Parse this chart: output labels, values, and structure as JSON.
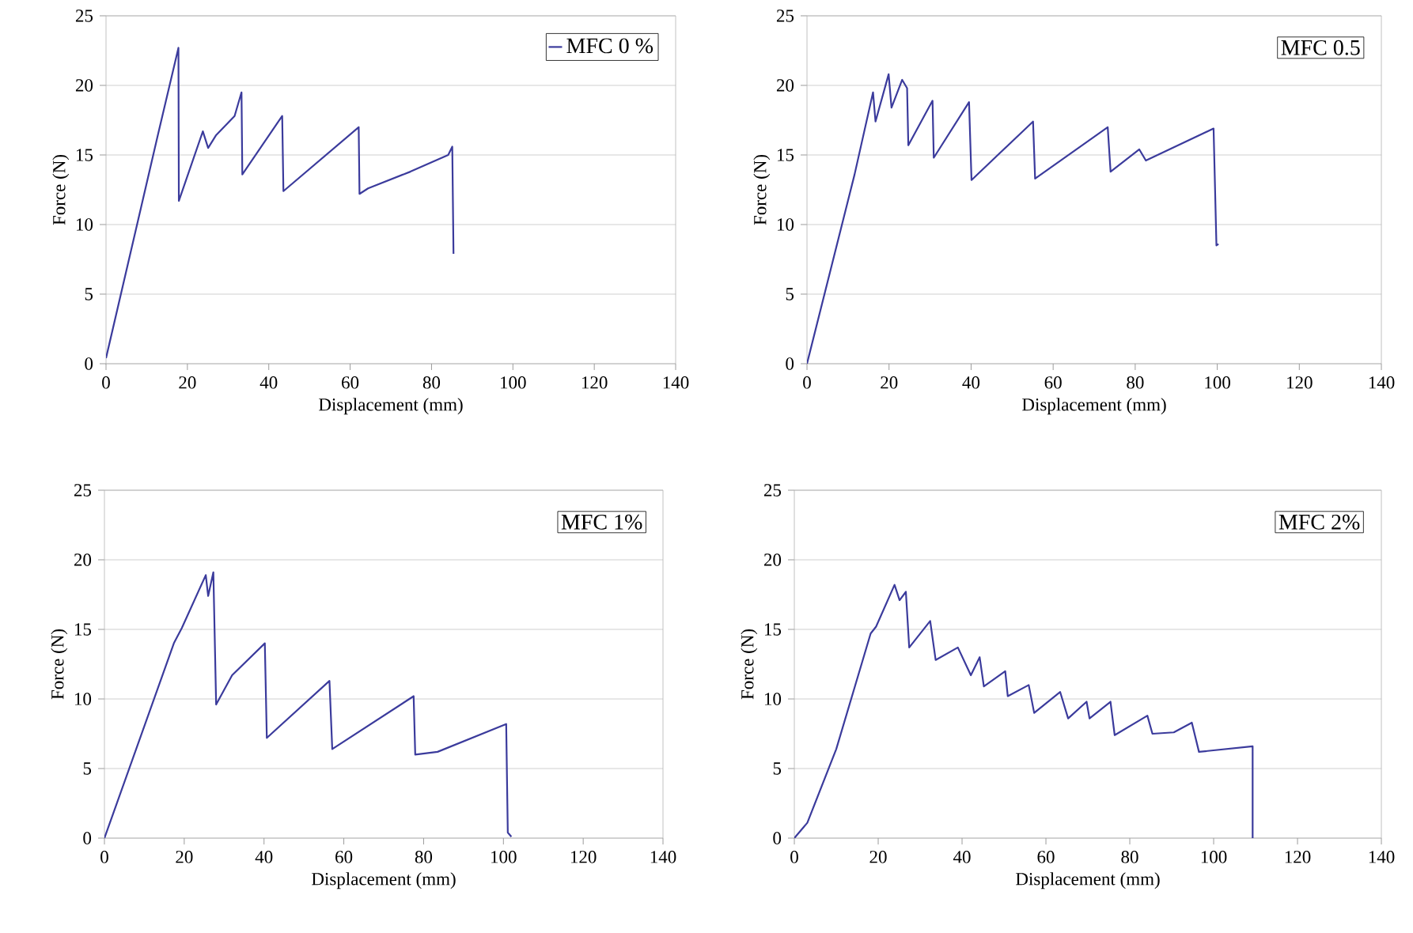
{
  "chart_data": [
    {
      "type": "line",
      "xlabel": "Displacement (mm)",
      "ylabel": "Force (N)",
      "xlim": [
        0,
        140
      ],
      "xticks": [
        0,
        20,
        40,
        60,
        80,
        100,
        120,
        140
      ],
      "ylim": [
        0,
        25
      ],
      "yticks": [
        0,
        5,
        10,
        15,
        20,
        25
      ],
      "grid": "y",
      "legend": "top right",
      "series": [
        {
          "name": "MFC 0 %",
          "color": "#3b3b9c",
          "x": [
            0,
            12.8,
            17.8,
            17.9,
            23.8,
            25.1,
            27,
            31.6,
            33.3,
            33.5,
            43.3,
            43.6,
            62.1,
            62.3,
            64.4,
            74.8,
            84.1,
            85.1,
            85.4
          ],
          "values": [
            0.4,
            16.5,
            22.7,
            11.7,
            16.7,
            15.5,
            16.4,
            17.8,
            19.5,
            13.6,
            17.8,
            12.4,
            17.0,
            12.2,
            12.6,
            13.8,
            15.0,
            15.6,
            7.9
          ]
        }
      ]
    },
    {
      "type": "line",
      "xlabel": "Displacement (mm)",
      "ylabel": "Force (N)",
      "xlim": [
        0,
        140
      ],
      "xticks": [
        0,
        20,
        40,
        60,
        80,
        100,
        120,
        140
      ],
      "ylim": [
        0,
        25
      ],
      "yticks": [
        0,
        5,
        10,
        15,
        20,
        25
      ],
      "grid": "y",
      "annotations": [
        "MFC 0.5"
      ],
      "series": [
        {
          "color": "#3b3b9c",
          "x": [
            0,
            11.6,
            16.1,
            16.7,
            19.9,
            20.6,
            23.2,
            24.4,
            24.7,
            30.6,
            30.9,
            39.5,
            40.1,
            55.1,
            55.6,
            73.3,
            74.0,
            81.0,
            82.6,
            99.1,
            99.8,
            100.3
          ],
          "values": [
            0,
            13.6,
            19.5,
            17.4,
            20.8,
            18.4,
            20.4,
            19.8,
            15.7,
            18.9,
            14.8,
            18.8,
            13.2,
            17.4,
            13.3,
            17.0,
            13.8,
            15.4,
            14.6,
            16.9,
            8.5,
            8.6
          ]
        }
      ]
    },
    {
      "type": "line",
      "xlabel": "Displacement (mm)",
      "ylabel": "Force (N)",
      "xlim": [
        0,
        140
      ],
      "xticks": [
        0,
        20,
        40,
        60,
        80,
        100,
        120,
        140
      ],
      "ylim": [
        0,
        25
      ],
      "yticks": [
        0,
        5,
        10,
        15,
        20,
        25
      ],
      "grid": "y",
      "annotations": [
        "MFC 1%"
      ],
      "series": [
        {
          "color": "#3b3b9c",
          "x": [
            0,
            17.4,
            19.4,
            25.4,
            26.0,
            27.3,
            28.0,
            32,
            40.2,
            40.7,
            56.4,
            57.1,
            77.5,
            77.9,
            83.5,
            100.7,
            101.1,
            102
          ],
          "values": [
            0,
            14.0,
            15.1,
            18.9,
            17.4,
            19.1,
            9.6,
            11.7,
            14.0,
            7.2,
            11.3,
            6.4,
            10.2,
            6.0,
            6.2,
            8.2,
            0.4,
            0.1
          ]
        }
      ]
    },
    {
      "type": "line",
      "xlabel": "Displacement (mm)",
      "ylabel": "Force (N)",
      "xlim": [
        0,
        140
      ],
      "xticks": [
        0,
        20,
        40,
        60,
        80,
        100,
        120,
        140
      ],
      "ylim": [
        0,
        25
      ],
      "yticks": [
        0,
        5,
        10,
        15,
        20,
        25
      ],
      "grid": "y",
      "annotations": [
        "MFC 2%"
      ],
      "series": [
        {
          "color": "#3b3b9c",
          "x": [
            0,
            3.1,
            10,
            18.2,
            19.5,
            23.9,
            25.1,
            26.6,
            27.4,
            32.4,
            33.7,
            39,
            42.1,
            44.2,
            45.2,
            50.3,
            50.9,
            55.9,
            57.2,
            63.4,
            65.3,
            69.7,
            70.4,
            75.4,
            76.4,
            84.2,
            85.4,
            90.5,
            94.8,
            96.5,
            109.3,
            109.3
          ],
          "values": [
            0,
            1.1,
            6.4,
            14.7,
            15.2,
            18.2,
            17.1,
            17.7,
            13.7,
            15.6,
            12.8,
            13.7,
            11.7,
            13.0,
            10.9,
            12.0,
            10.2,
            11.0,
            9.0,
            10.5,
            8.6,
            9.8,
            8.6,
            9.8,
            7.4,
            8.8,
            7.5,
            7.6,
            8.3,
            6.2,
            6.6,
            0
          ]
        }
      ]
    }
  ]
}
